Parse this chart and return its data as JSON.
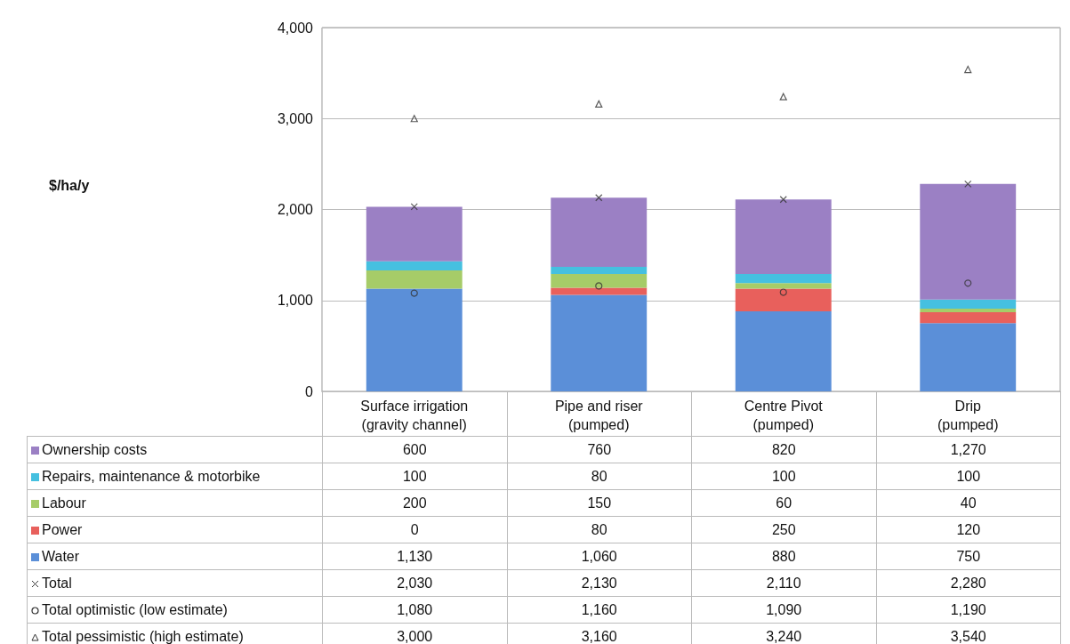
{
  "chart_data": {
    "type": "bar",
    "stacked": true,
    "annotations": [
      "$/ha/y"
    ],
    "categories": [
      "Surface irrigation\n(gravity channel)",
      "Pipe and riser\n(pumped)",
      "Centre Pivot\n(pumped)",
      "Drip\n(pumped)"
    ],
    "series": [
      {
        "name": "Water",
        "color": "#5b8fd8",
        "values": [
          1130,
          1060,
          880,
          750
        ],
        "value_labels": [
          "1,130",
          "1,060",
          "880",
          "750"
        ]
      },
      {
        "name": "Power",
        "color": "#e8605c",
        "values": [
          0,
          80,
          250,
          120
        ],
        "value_labels": [
          "0",
          "80",
          "250",
          "120"
        ]
      },
      {
        "name": "Labour",
        "color": "#a6cc68",
        "values": [
          200,
          150,
          60,
          40
        ],
        "value_labels": [
          "200",
          "150",
          "60",
          "40"
        ]
      },
      {
        "name": "Repairs, maintenance & motorbike",
        "color": "#45c0e0",
        "values": [
          100,
          80,
          100,
          100
        ],
        "value_labels": [
          "100",
          "80",
          "100",
          "100"
        ]
      },
      {
        "name": "Ownership costs",
        "color": "#9b80c4",
        "values": [
          600,
          760,
          820,
          1270
        ],
        "value_labels": [
          "600",
          "760",
          "820",
          "1,270"
        ]
      },
      {
        "name": "Total",
        "type": "scatter",
        "marker": "cross",
        "color": "#333333",
        "x": [
          "Surface irrigation\n(gravity channel)",
          "Pipe and riser\n(pumped)",
          "Centre Pivot\n(pumped)",
          "Drip\n(pumped)"
        ],
        "values": [
          2030,
          2130,
          2110,
          2280
        ],
        "value_labels": [
          "2,030",
          "2,130",
          "2,110",
          "2,280"
        ]
      },
      {
        "name": "Total optimistic (low estimate)",
        "type": "scatter",
        "marker": "circle",
        "color": "#333333",
        "x": [
          "Surface irrigation\n(gravity channel)",
          "Pipe and riser\n(pumped)",
          "Centre Pivot\n(pumped)",
          "Drip\n(pumped)"
        ],
        "values": [
          1080,
          1160,
          1090,
          1190
        ],
        "value_labels": [
          "1,080",
          "1,160",
          "1,090",
          "1,190"
        ]
      },
      {
        "name": "Total pessimistic (high estimate)",
        "type": "scatter",
        "marker": "triangle",
        "color": "#333333",
        "x": [
          "Surface irrigation\n(gravity channel)",
          "Pipe and riser\n(pumped)",
          "Centre Pivot\n(pumped)",
          "Drip\n(pumped)"
        ],
        "values": [
          3000,
          3160,
          3240,
          3540
        ],
        "value_labels": [
          "3,000",
          "3,160",
          "3,240",
          "3,540"
        ]
      }
    ],
    "ylim": [
      0,
      4000
    ],
    "yticks": [
      0,
      {
        "value": 1000,
        "label": "1,000"
      },
      {
        "value": 2000,
        "label": "2,000"
      },
      {
        "value": 3000,
        "label": "3,000"
      },
      {
        "value": 4000,
        "label": "4,000"
      }
    ],
    "grid": "y",
    "legend": "bottom"
  }
}
